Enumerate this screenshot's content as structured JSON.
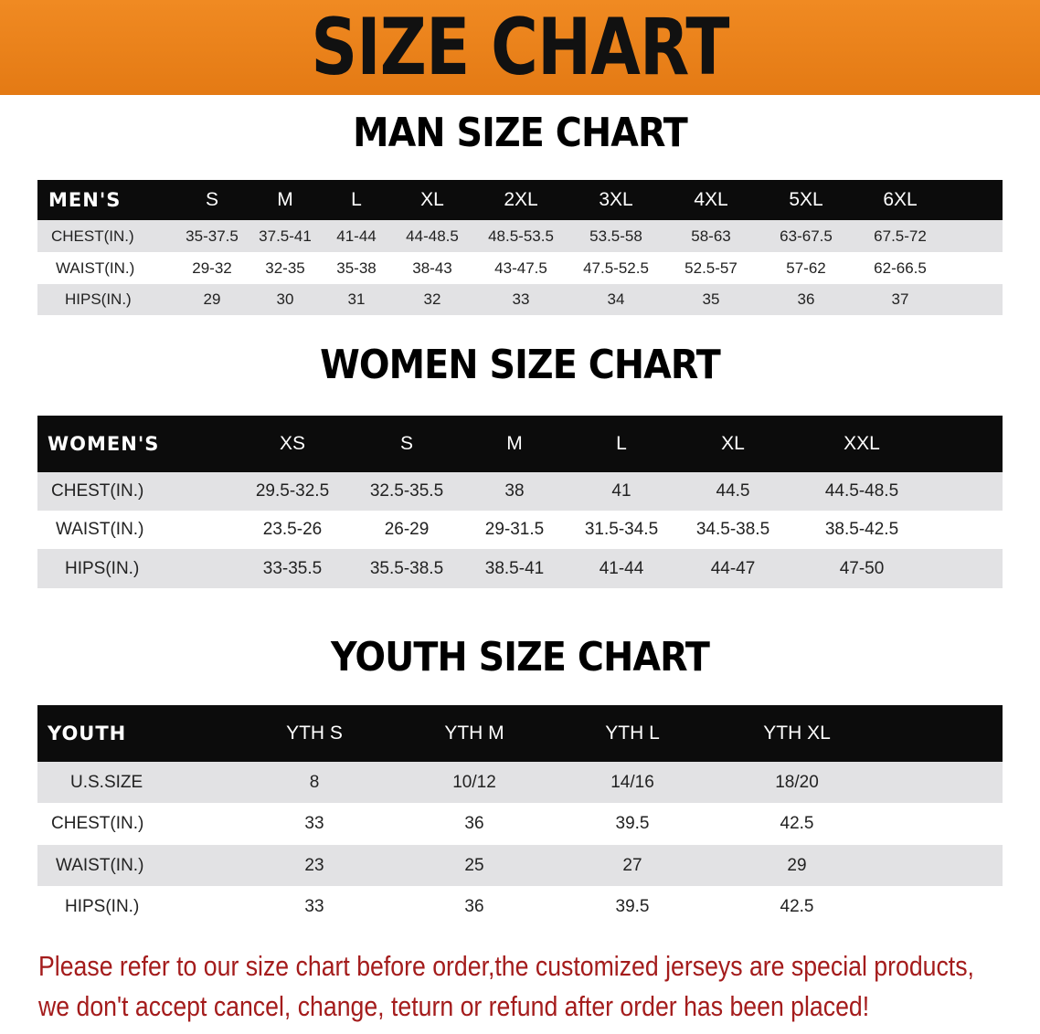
{
  "banner": {
    "title": "SIZE CHART",
    "color": "#e8801e"
  },
  "men": {
    "title": "MAN SIZE CHART",
    "header": [
      "MEN'S",
      "S",
      "M",
      "L",
      "XL",
      "2XL",
      "3XL",
      "4XL",
      "5XL",
      "6XL"
    ],
    "rows": [
      [
        "CHEST(IN.)",
        "35-37.5",
        "37.5-41",
        "41-44",
        "44-48.5",
        "48.5-53.5",
        "53.5-58",
        "58-63",
        "63-67.5",
        "67.5-72"
      ],
      [
        "WAIST(IN.)",
        "29-32",
        "32-35",
        "35-38",
        "38-43",
        "43-47.5",
        "47.5-52.5",
        "52.5-57",
        "57-62",
        "62-66.5"
      ],
      [
        "HIPS(IN.)",
        "29",
        "30",
        "31",
        "32",
        "33",
        "34",
        "35",
        "36",
        "37"
      ]
    ]
  },
  "women": {
    "title": "WOMEN SIZE CHART",
    "header": [
      "WOMEN'S",
      "XS",
      "S",
      "M",
      "L",
      "XL",
      "XXL"
    ],
    "rows": [
      [
        "CHEST(IN.)",
        "29.5-32.5",
        "32.5-35.5",
        "38",
        "41",
        "44.5",
        "44.5-48.5"
      ],
      [
        "WAIST(IN.)",
        "23.5-26",
        "26-29",
        "29-31.5",
        "31.5-34.5",
        "34.5-38.5",
        "38.5-42.5"
      ],
      [
        "HIPS(IN.)",
        "33-35.5",
        "35.5-38.5",
        "38.5-41",
        "41-44",
        "44-47",
        "47-50"
      ]
    ]
  },
  "youth": {
    "title": "YOUTH SIZE CHART",
    "header": [
      "YOUTH",
      "YTH S",
      "YTH M",
      "YTH L",
      "YTH XL"
    ],
    "rows": [
      [
        "U.S.SIZE",
        "8",
        "10/12",
        "14/16",
        "18/20"
      ],
      [
        "CHEST(IN.)",
        "33",
        "36",
        "39.5",
        "42.5"
      ],
      [
        "WAIST(IN.)",
        "23",
        "25",
        "27",
        "29"
      ],
      [
        "HIPS(IN.)",
        "33",
        "36",
        "39.5",
        "42.5"
      ]
    ]
  },
  "note": {
    "line1": "Please refer to our size chart before order,the customized jerseys are special products,",
    "line2": "we don't accept cancel, change, teturn or refund after order has been placed!",
    "color": "#a41c1c"
  }
}
